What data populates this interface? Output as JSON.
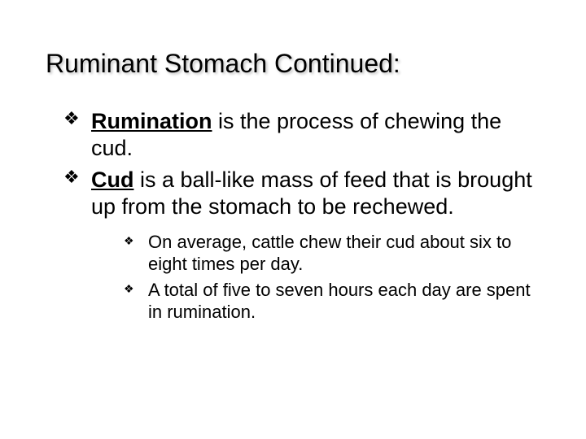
{
  "slide": {
    "title": "Ruminant Stomach Continued:",
    "bullets": [
      {
        "keyword": "Rumination",
        "rest": " is the process of chewing the cud."
      },
      {
        "keyword": "Cud",
        "rest": " is a ball-like mass of feed that is brought up from the stomach to be rechewed."
      }
    ],
    "subbullets": [
      {
        "text": "On average, cattle chew their cud about six to eight times per day."
      },
      {
        "text": "A total of five to seven hours each day are spent in rumination."
      }
    ],
    "style": {
      "background_color": "#ffffff",
      "text_color": "#000000",
      "title_fontsize_pt": 24,
      "body_fontsize_pt": 20,
      "sub_fontsize_pt": 17,
      "bullet_glyph": "❖",
      "font_family": "Arial"
    }
  }
}
